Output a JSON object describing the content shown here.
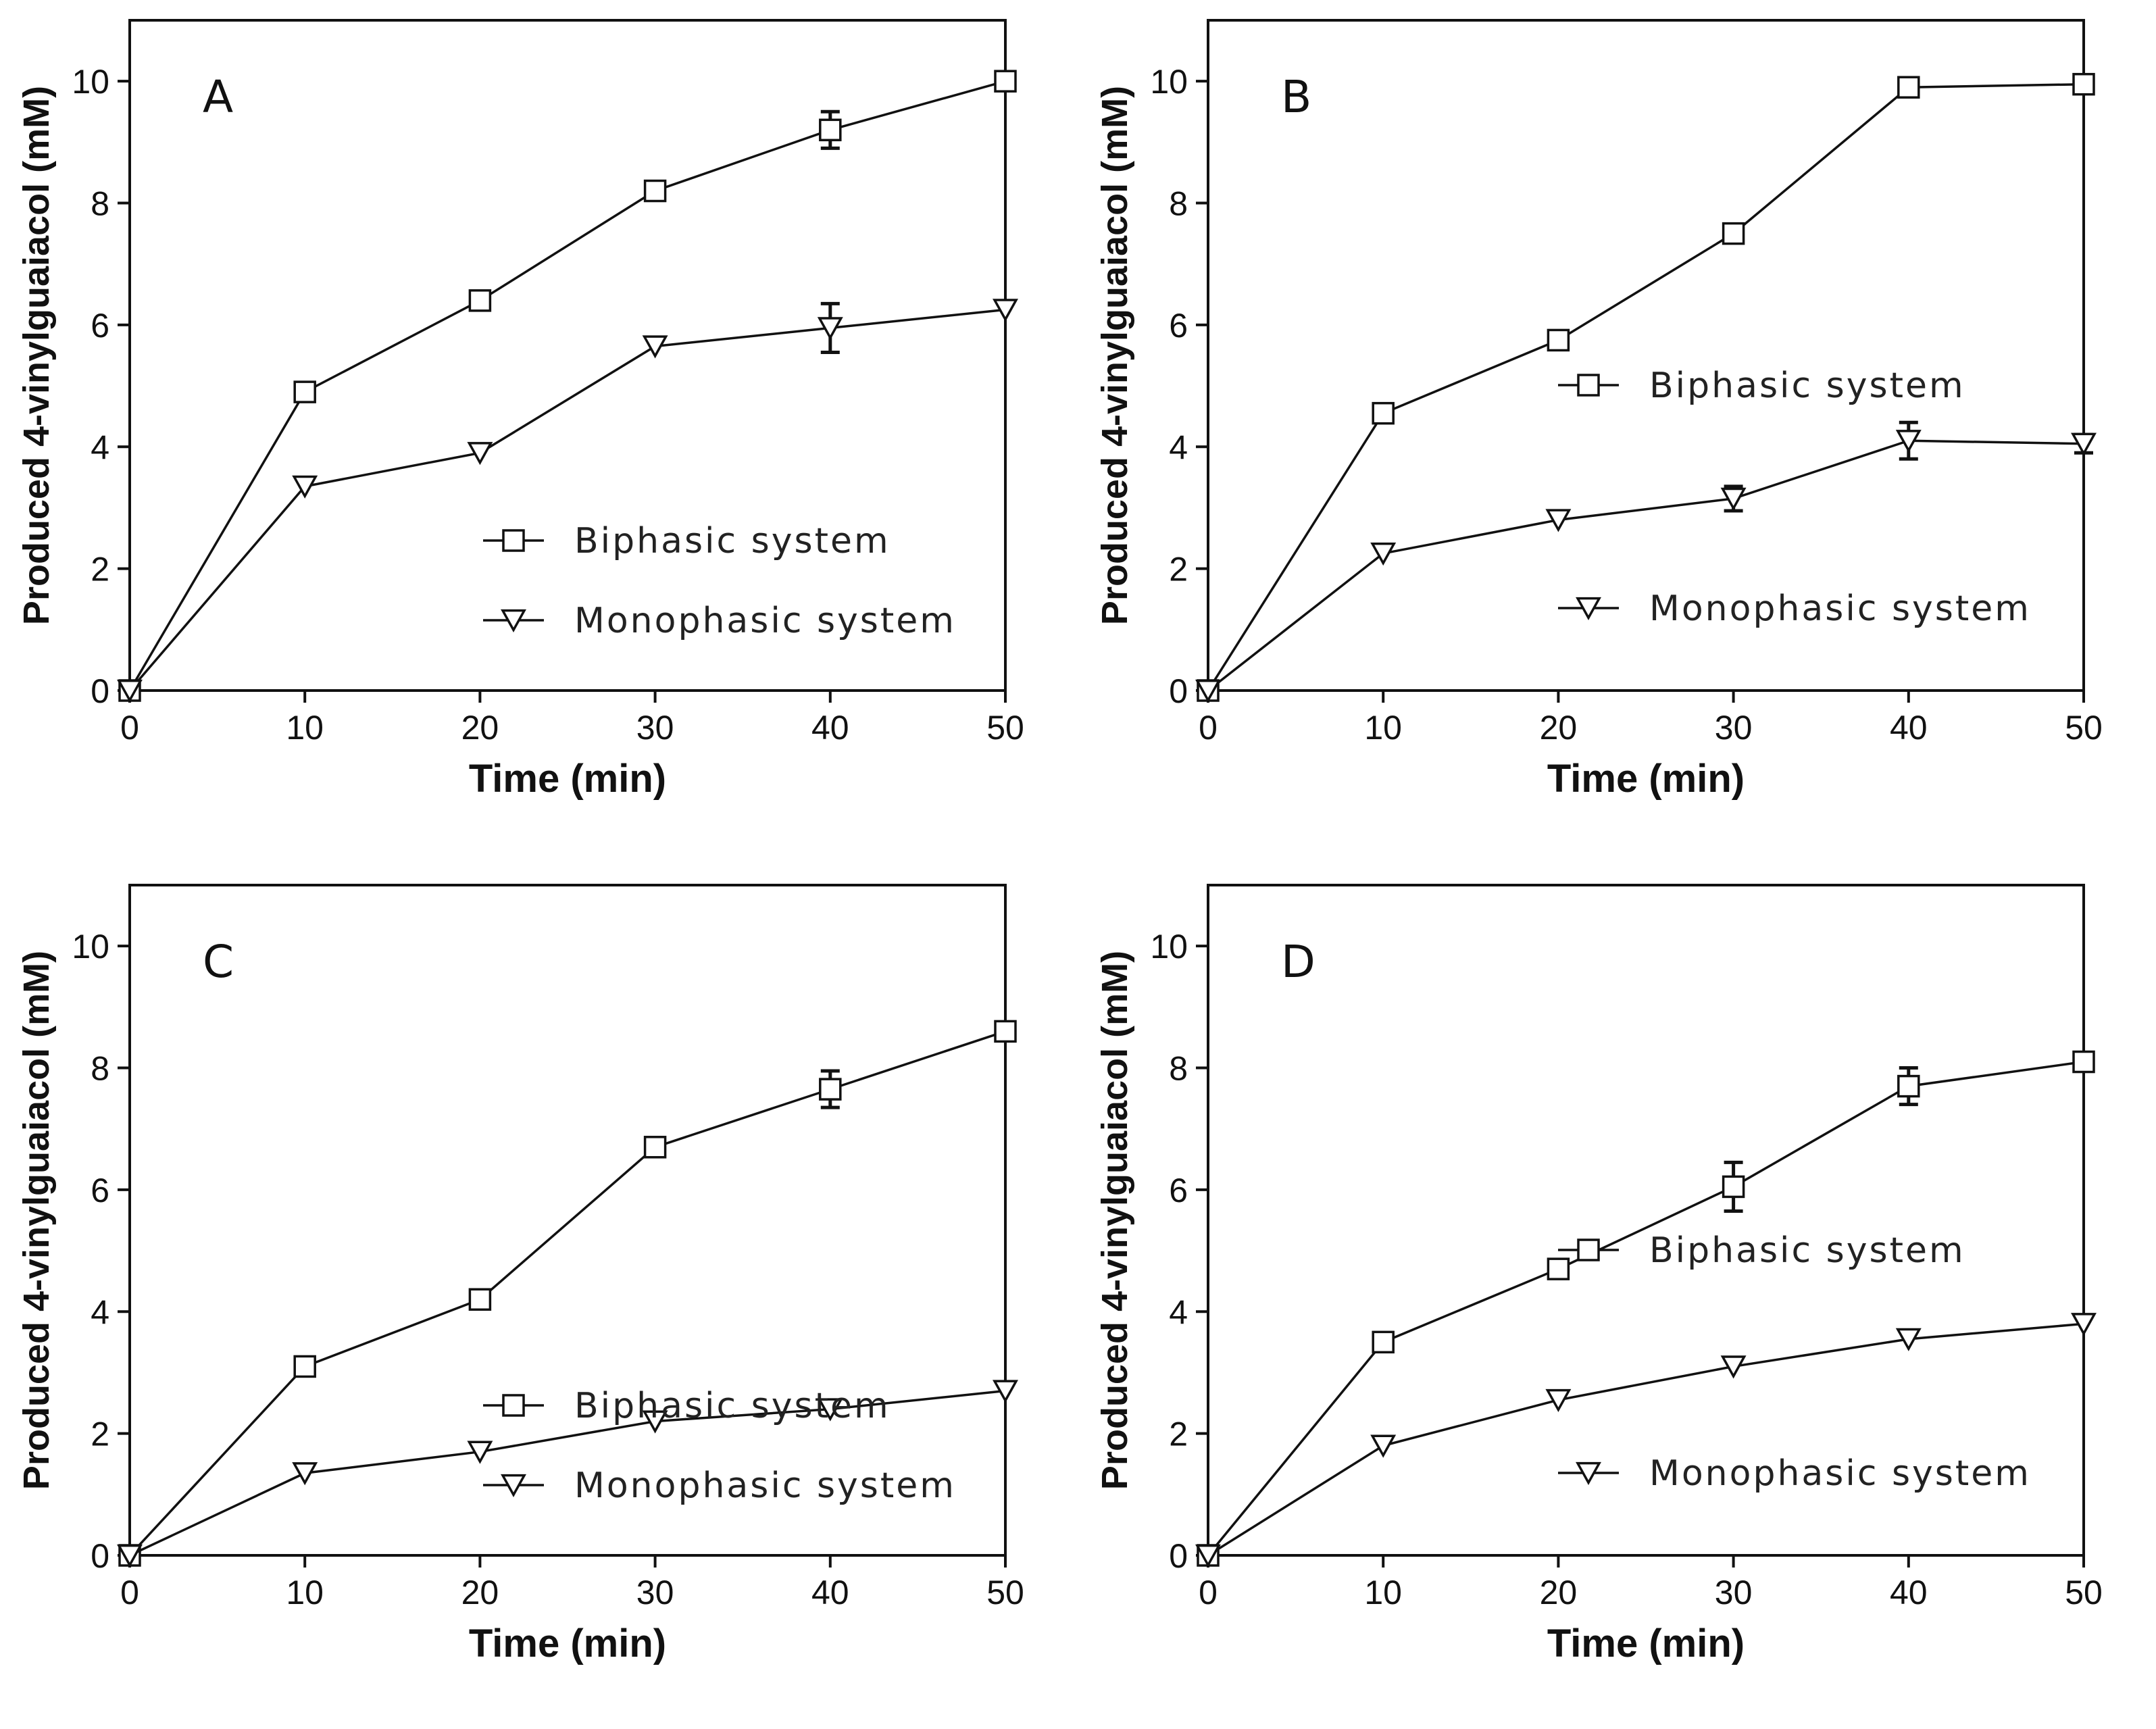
{
  "chart_data": [
    {
      "type": "line",
      "panel": "A",
      "xlabel": "Time (min)",
      "ylabel": "Produced 4-vinylguaiacol (mM)",
      "xlim": [
        0,
        50
      ],
      "ylim": [
        0,
        11
      ],
      "xticks": [
        "0",
        "10",
        "20",
        "30",
        "40",
        "50"
      ],
      "yticks": [
        "0",
        "2",
        "4",
        "6",
        "8",
        "10"
      ],
      "x": [
        0,
        10,
        20,
        30,
        40,
        50
      ],
      "legend_position": "bottom-right",
      "series": [
        {
          "name": "Biphasic system",
          "marker": "square",
          "values": [
            0,
            4.9,
            6.4,
            8.2,
            9.2,
            10.0
          ],
          "errors": [
            0,
            0.15,
            0.1,
            0.1,
            0.3,
            0.05
          ]
        },
        {
          "name": "Monophasic system",
          "marker": "triangle-down",
          "values": [
            0,
            3.35,
            3.9,
            5.65,
            5.95,
            6.25
          ],
          "errors": [
            0,
            0.1,
            0.1,
            0.1,
            0.4,
            0.05
          ]
        }
      ]
    },
    {
      "type": "line",
      "panel": "B",
      "xlabel": "Time (min)",
      "ylabel": "Produced 4-vinylguaiacol (mM)",
      "xlim": [
        0,
        50
      ],
      "ylim": [
        0,
        11
      ],
      "xticks": [
        "0",
        "10",
        "20",
        "30",
        "40",
        "50"
      ],
      "yticks": [
        "0",
        "2",
        "4",
        "6",
        "8",
        "10"
      ],
      "x": [
        0,
        10,
        20,
        30,
        40,
        50
      ],
      "legend_position": "middle-right",
      "series": [
        {
          "name": "Biphasic system",
          "marker": "square",
          "values": [
            0,
            4.55,
            5.75,
            7.5,
            9.9,
            9.95
          ],
          "errors": [
            0,
            0.1,
            0.1,
            0.1,
            0.1,
            0.05
          ]
        },
        {
          "name": "Monophasic system",
          "marker": "triangle-down",
          "values": [
            0,
            2.25,
            2.8,
            3.15,
            4.1,
            4.05
          ],
          "errors": [
            0,
            0.1,
            0.1,
            0.2,
            0.3,
            0.15
          ]
        }
      ]
    },
    {
      "type": "line",
      "panel": "C",
      "xlabel": "Time (min)",
      "ylabel": "Produced 4-vinylguaiacol (mM)",
      "xlim": [
        0,
        50
      ],
      "ylim": [
        0,
        11
      ],
      "xticks": [
        "0",
        "10",
        "20",
        "30",
        "40",
        "50"
      ],
      "yticks": [
        "0",
        "2",
        "4",
        "6",
        "8",
        "10"
      ],
      "x": [
        0,
        10,
        20,
        30,
        40,
        50
      ],
      "legend_position": "bottom-right",
      "series": [
        {
          "name": "Biphasic system",
          "marker": "square",
          "values": [
            0,
            3.1,
            4.2,
            6.7,
            7.65,
            8.6
          ],
          "errors": [
            0,
            0.1,
            0.1,
            0.1,
            0.3,
            0.05
          ]
        },
        {
          "name": "Monophasic system",
          "marker": "triangle-down",
          "values": [
            0,
            1.35,
            1.7,
            2.2,
            2.4,
            2.7
          ],
          "errors": [
            0,
            0.05,
            0.05,
            0.05,
            0.1,
            0.05
          ]
        }
      ]
    },
    {
      "type": "line",
      "panel": "D",
      "xlabel": "Time (min)",
      "ylabel": "Produced 4-vinylguaiacol (mM)",
      "xlim": [
        0,
        50
      ],
      "ylim": [
        0,
        11
      ],
      "xticks": [
        "0",
        "10",
        "20",
        "30",
        "40",
        "50"
      ],
      "yticks": [
        "0",
        "2",
        "4",
        "6",
        "8",
        "10"
      ],
      "x": [
        0,
        10,
        20,
        30,
        40,
        50
      ],
      "legend_position": "middle-right",
      "series": [
        {
          "name": "Biphasic system",
          "marker": "square",
          "values": [
            0,
            3.5,
            4.7,
            6.05,
            7.7,
            8.1
          ],
          "errors": [
            0,
            0.1,
            0.1,
            0.4,
            0.3,
            0.05
          ]
        },
        {
          "name": "Monophasic system",
          "marker": "triangle-down",
          "values": [
            0,
            1.8,
            2.55,
            3.1,
            3.55,
            3.8
          ],
          "errors": [
            0,
            0.05,
            0.05,
            0.05,
            0.1,
            0.05
          ]
        }
      ]
    }
  ]
}
